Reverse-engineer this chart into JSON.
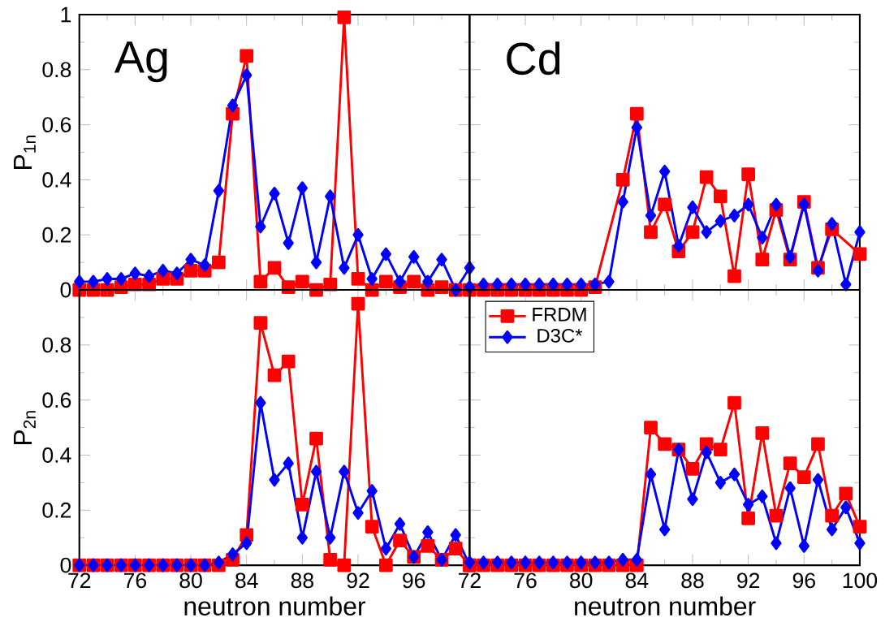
{
  "chart_data": [
    {
      "type": "line",
      "ylabel": "P$_{1n}$",
      "annotations": [
        "Ag"
      ],
      "xlim": [
        72,
        100
      ],
      "ylim": [
        0,
        1
      ],
      "xticks": [
        72,
        76,
        80,
        84,
        88,
        92,
        96,
        100
      ],
      "yticks": [
        0,
        0.2,
        0.4,
        0.6,
        0.8,
        1
      ],
      "tick_labels": "y",
      "legend": false,
      "x": [
        72,
        73,
        74,
        75,
        76,
        77,
        78,
        79,
        80,
        81,
        82,
        83,
        84,
        85,
        86,
        87,
        88,
        89,
        90,
        91,
        92,
        93,
        94,
        95,
        96,
        97,
        98,
        99,
        100
      ],
      "series": [
        {
          "color": "#ff0000",
          "marker": "square",
          "values": [
            0,
            0,
            0,
            0.01,
            0.02,
            0.02,
            0.04,
            0.04,
            0.07,
            0.07,
            0.1,
            0.64,
            0.85,
            0.03,
            0.08,
            0.01,
            0.03,
            0.0,
            0.02,
            0.99,
            0.04,
            0.0,
            0.03,
            0.01,
            0.03,
            0.0,
            0.01,
            0.0,
            null
          ]
        },
        {
          "color": "#0000ff",
          "marker": "diamond",
          "values": [
            0.03,
            0.03,
            0.04,
            0.04,
            0.06,
            0.05,
            0.07,
            0.06,
            0.11,
            0.09,
            0.36,
            0.67,
            0.78,
            0.23,
            0.35,
            0.17,
            0.37,
            0.1,
            0.34,
            0.08,
            0.2,
            0.04,
            0.13,
            0.03,
            0.12,
            0.03,
            0.11,
            0.0,
            0.08
          ]
        }
      ]
    },
    {
      "type": "line",
      "annotations": [
        "Cd"
      ],
      "xlim": [
        72,
        100
      ],
      "ylim": [
        0,
        1
      ],
      "xticks": [
        72,
        76,
        80,
        84,
        88,
        92,
        96,
        100
      ],
      "yticks": [
        0,
        0.2,
        0.4,
        0.6,
        0.8,
        1
      ],
      "tick_labels": false,
      "legend": false,
      "x": [
        72,
        73,
        74,
        75,
        76,
        77,
        78,
        79,
        80,
        81,
        82,
        83,
        84,
        85,
        86,
        87,
        88,
        89,
        90,
        91,
        92,
        93,
        94,
        95,
        96,
        97,
        98,
        99,
        100
      ],
      "series": [
        {
          "color": "#ff0000",
          "marker": "square",
          "values": [
            0,
            0,
            0,
            0,
            0,
            0,
            0,
            0,
            0,
            0.01,
            null,
            0.4,
            0.64,
            0.21,
            0.31,
            0.14,
            0.21,
            0.41,
            0.34,
            0.05,
            0.42,
            0.11,
            0.29,
            0.11,
            0.32,
            0.08,
            0.22,
            null,
            0.13
          ]
        },
        {
          "color": "#0000ff",
          "marker": "diamond",
          "values": [
            0.01,
            0.02,
            0.02,
            0.02,
            0.02,
            0.02,
            0.02,
            0.02,
            0.02,
            0.02,
            0.03,
            0.32,
            0.59,
            0.27,
            0.43,
            0.16,
            0.3,
            0.21,
            0.25,
            0.27,
            0.31,
            0.19,
            0.31,
            0.12,
            0.31,
            0.07,
            0.24,
            0.02,
            0.21
          ]
        }
      ]
    },
    {
      "type": "line",
      "xlabel": "neutron number",
      "ylabel": "P$_{2n}$",
      "xlim": [
        72,
        100
      ],
      "ylim": [
        0,
        1
      ],
      "xticks": [
        72,
        76,
        80,
        84,
        88,
        92,
        96,
        {
          "value": 100,
          "label": null
        }
      ],
      "yticks": [
        0,
        0.2,
        0.4,
        0.6,
        0.8,
        {
          "value": 1,
          "label": null
        }
      ],
      "legend": false,
      "x": [
        72,
        73,
        74,
        75,
        76,
        77,
        78,
        79,
        80,
        81,
        82,
        83,
        84,
        85,
        86,
        87,
        88,
        89,
        90,
        91,
        92,
        93,
        94,
        95,
        96,
        97,
        98,
        99,
        100
      ],
      "series": [
        {
          "color": "#ff0000",
          "marker": "square",
          "values": [
            0,
            0,
            0,
            0,
            0,
            0,
            0,
            0,
            0,
            0,
            0,
            0.02,
            0.11,
            0.88,
            0.69,
            0.74,
            0.22,
            0.46,
            0.02,
            0.0,
            0.95,
            0.14,
            0.0,
            0.09,
            0.03,
            0.07,
            0.02,
            0.06,
            0.0
          ]
        },
        {
          "color": "#0000ff",
          "marker": "diamond",
          "values": [
            0,
            0,
            0,
            0,
            0,
            0,
            0,
            0,
            0,
            0,
            0.01,
            0.04,
            0.08,
            0.59,
            0.31,
            0.37,
            0.1,
            0.34,
            0.1,
            0.34,
            0.19,
            0.27,
            0.06,
            0.15,
            0.03,
            0.12,
            0.02,
            0.11,
            0.0
          ]
        }
      ]
    },
    {
      "type": "line",
      "xlabel": "neutron number",
      "xlim": [
        72,
        100
      ],
      "ylim": [
        0,
        1
      ],
      "xticks": [
        72,
        76,
        80,
        84,
        88,
        92,
        96,
        100
      ],
      "yticks": [
        0,
        0.2,
        0.4,
        0.6,
        0.8,
        1
      ],
      "tick_labels": "x",
      "legend": "top left",
      "x": [
        72,
        73,
        74,
        75,
        76,
        77,
        78,
        79,
        80,
        81,
        82,
        83,
        84,
        85,
        86,
        87,
        88,
        89,
        90,
        91,
        92,
        93,
        94,
        95,
        96,
        97,
        98,
        99,
        100
      ],
      "series": [
        {
          "name": "FRDM",
          "color": "#ff0000",
          "marker": "square",
          "values": [
            0,
            0,
            0,
            0,
            0,
            0,
            0,
            0,
            0,
            0,
            0,
            0,
            0,
            0.5,
            0.44,
            0.42,
            0.35,
            0.44,
            0.42,
            0.59,
            0.17,
            0.48,
            0.18,
            0.37,
            0.32,
            0.44,
            0.18,
            0.26,
            0.14
          ]
        },
        {
          "name": "D3C*",
          "color": "#0000ff",
          "marker": "diamond",
          "values": [
            0.01,
            0.01,
            0.01,
            0.01,
            0.01,
            0.01,
            0.01,
            0.01,
            0.01,
            0.01,
            0.01,
            0.02,
            0.02,
            0.33,
            0.13,
            0.42,
            0.24,
            0.41,
            0.3,
            0.33,
            0.22,
            0.25,
            0.08,
            0.28,
            0.07,
            0.31,
            0.13,
            0.21,
            0.08
          ]
        }
      ]
    }
  ]
}
